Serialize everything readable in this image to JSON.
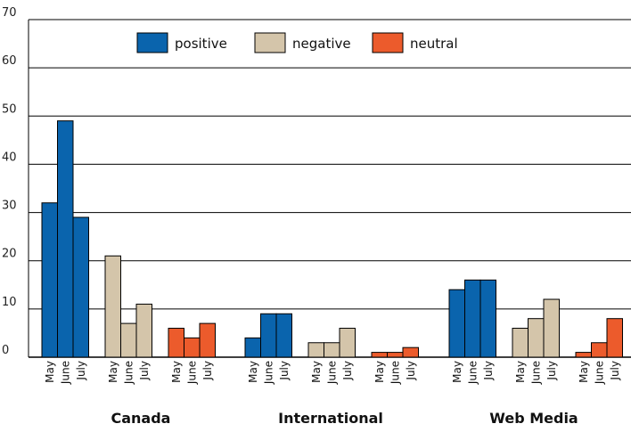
{
  "chart_data": {
    "type": "bar",
    "title": "",
    "xlabel": "",
    "ylabel": "",
    "ylim": [
      0,
      70
    ],
    "yticks": [
      0,
      10,
      20,
      30,
      40,
      50,
      60,
      70
    ],
    "grid": true,
    "legend_position": "top",
    "groups": [
      "Canada",
      "International",
      "Web Media"
    ],
    "months": [
      "May",
      "June",
      "July"
    ],
    "series": [
      {
        "name": "positive",
        "color": "#0a64ad",
        "values": [
          [
            32,
            49,
            29
          ],
          [
            4,
            9,
            9
          ],
          [
            14,
            16,
            16
          ]
        ]
      },
      {
        "name": "negative",
        "color": "#d4c5aa",
        "values": [
          [
            21,
            7,
            11
          ],
          [
            3,
            3,
            6
          ],
          [
            6,
            8,
            12
          ]
        ]
      },
      {
        "name": "neutral",
        "color": "#ec5b2c",
        "values": [
          [
            6,
            4,
            7
          ],
          [
            1,
            1,
            2
          ],
          [
            1,
            3,
            8
          ]
        ]
      }
    ]
  }
}
